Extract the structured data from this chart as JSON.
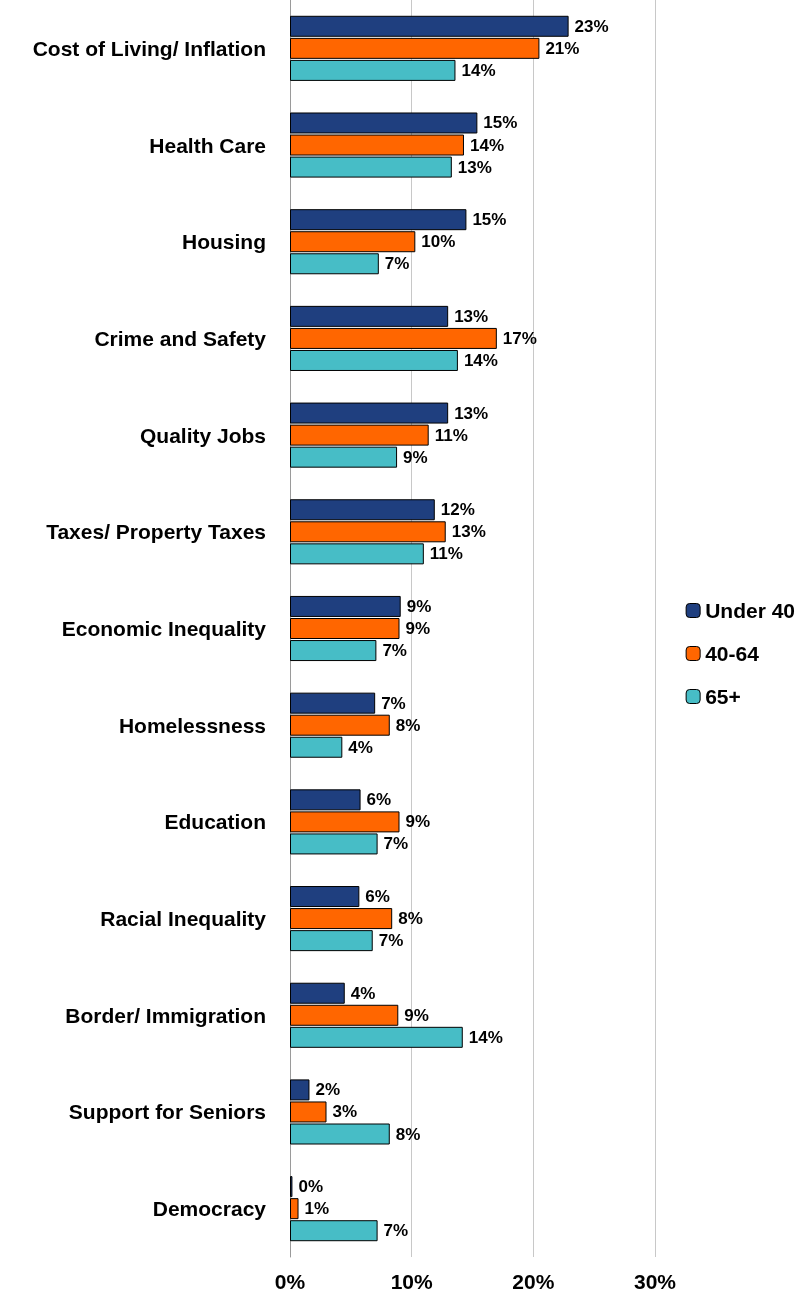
{
  "chart_data": {
    "type": "bar",
    "orientation": "horizontal",
    "categories": [
      "Cost of Living/ Inflation",
      "Health Care",
      "Housing",
      "Crime and Safety",
      "Quality Jobs",
      "Taxes/ Property Taxes",
      "Economic Inequality",
      "Homelessness",
      "Education",
      "Racial Inequality",
      "Border/ Immigration",
      "Support for Seniors",
      "Democracy"
    ],
    "series": [
      {
        "name": "Under 40",
        "color": "#1f3f7f",
        "values": [
          22.9,
          15.4,
          14.5,
          13.0,
          13.0,
          11.9,
          9.1,
          7.0,
          5.8,
          5.7,
          4.5,
          1.6,
          0.2
        ],
        "value_labels": [
          "23%",
          "15%",
          "15%",
          "13%",
          "13%",
          "12%",
          "9%",
          "7%",
          "6%",
          "6%",
          "4%",
          "2%",
          "0%"
        ]
      },
      {
        "name": "40-64",
        "color": "#ff6600",
        "values": [
          20.5,
          14.3,
          10.3,
          17.0,
          11.4,
          12.8,
          9.0,
          8.2,
          9.0,
          8.4,
          8.9,
          3.0,
          0.7
        ],
        "value_labels": [
          "21%",
          "14%",
          "10%",
          "17%",
          "11%",
          "13%",
          "9%",
          "8%",
          "9%",
          "8%",
          "9%",
          "3%",
          "1%"
        ]
      },
      {
        "name": "65+",
        "color": "#47bdc6",
        "values": [
          13.6,
          13.3,
          7.3,
          13.8,
          8.8,
          11.0,
          7.1,
          4.3,
          7.2,
          6.8,
          14.2,
          8.2,
          7.2
        ],
        "value_labels": [
          "14%",
          "13%",
          "7%",
          "14%",
          "9%",
          "11%",
          "7%",
          "4%",
          "7%",
          "7%",
          "14%",
          "8%",
          "7%"
        ]
      }
    ],
    "xlim": [
      0,
      30
    ],
    "xticks": [
      {
        "value": 0,
        "label": "0%"
      },
      {
        "value": 10,
        "label": "10%"
      },
      {
        "value": 20,
        "label": "20%"
      },
      {
        "value": 30,
        "label": "30%"
      }
    ],
    "grid": "x",
    "legend": "right"
  }
}
